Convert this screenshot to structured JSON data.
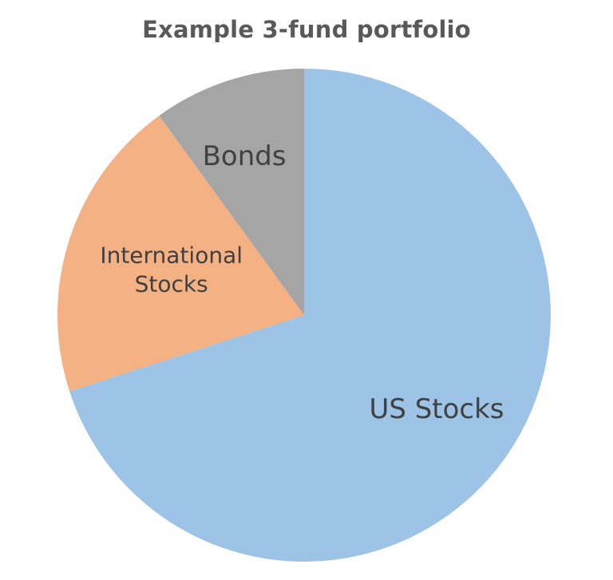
{
  "chart_data": {
    "type": "pie",
    "title": "Example 3-fund portfolio",
    "slices": [
      {
        "name": "US Stocks",
        "value": 70,
        "color": "#9dc3e6",
        "label_lines": [
          "US Stocks"
        ]
      },
      {
        "name": "International Stocks",
        "value": 20,
        "color": "#f4b183",
        "label_lines": [
          "International",
          "Stocks"
        ]
      },
      {
        "name": "Bonds",
        "value": 10,
        "color": "#a5a5a5",
        "label_lines": [
          "Bonds"
        ]
      }
    ],
    "start_angle": "12 o'clock",
    "direction": "clockwise",
    "legend": "none"
  }
}
